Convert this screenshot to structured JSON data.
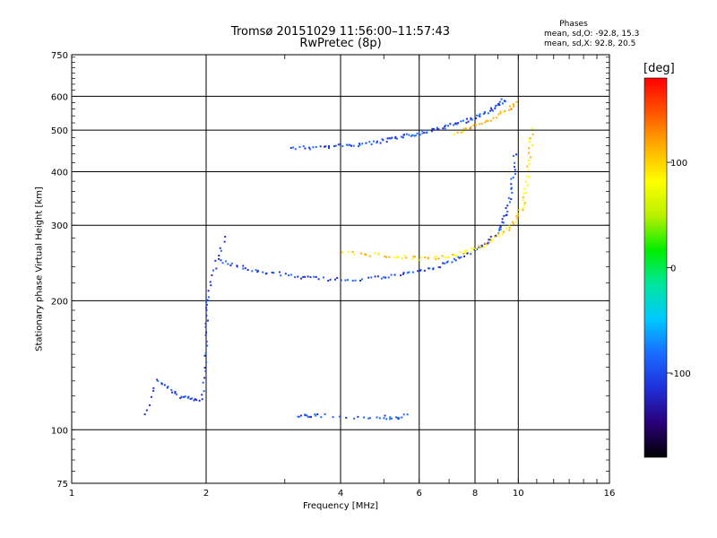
{
  "header": {
    "title_line1": "Tromsø 20151029 11:56:00–11:57:43",
    "title_line2": "RwPretec (8p)"
  },
  "phases_box": {
    "title": "Phases",
    "line1": "mean, sd,O: -92.8, 15.3",
    "line2": "mean, sd,X:  92.8, 20.5"
  },
  "colorbar": {
    "label": "[deg]",
    "range": [
      -180,
      180
    ],
    "tick_values": [
      100,
      0,
      -100
    ],
    "tick_labels": [
      "100",
      "0",
      "-100"
    ],
    "colors": [
      "#000000",
      "#2a007a",
      "#1f2fd8",
      "#1a6bff",
      "#00c8ff",
      "#00e6a0",
      "#00ee00",
      "#b8f000",
      "#ffff00",
      "#ffb000",
      "#ff5500",
      "#ff0000"
    ]
  },
  "chart_data": {
    "type": "scatter",
    "xlabel": "Frequency [MHz]",
    "ylabel": "Stationary phase Virtual Height [km]",
    "x_scale": "log",
    "y_scale": "log",
    "xlim": [
      1,
      16
    ],
    "ylim": [
      75,
      750
    ],
    "x_ticks": [
      1,
      2,
      4,
      6,
      8,
      10,
      16
    ],
    "y_ticks": [
      75,
      100,
      200,
      300,
      400,
      500,
      600,
      750
    ],
    "grid": true,
    "series": [
      {
        "points": [
          [
            3.1,
            455
          ],
          [
            3.4,
            455
          ],
          [
            3.7,
            457
          ],
          [
            4.0,
            460
          ],
          [
            4.3,
            462
          ],
          [
            4.6,
            465
          ],
          [
            4.9,
            470
          ],
          [
            5.2,
            476
          ],
          [
            5.5,
            482
          ],
          [
            5.8,
            488
          ],
          [
            6.1,
            494
          ],
          [
            6.4,
            500
          ],
          [
            6.8,
            507
          ],
          [
            7.2,
            515
          ],
          [
            7.6,
            525
          ],
          [
            8.0,
            535
          ],
          [
            8.4,
            548
          ],
          [
            8.8,
            560
          ],
          [
            9.1,
            575
          ],
          [
            9.3,
            590
          ]
        ]
      },
      {
        "points": [
          [
            7.2,
            490
          ],
          [
            7.8,
            505
          ],
          [
            8.4,
            520
          ],
          [
            9.0,
            540
          ],
          [
            9.5,
            560
          ],
          [
            9.9,
            580
          ]
        ]
      },
      {
        "points": [
          [
            2.15,
            250
          ],
          [
            2.3,
            242
          ],
          [
            2.5,
            236
          ],
          [
            2.7,
            233
          ],
          [
            3.0,
            230
          ],
          [
            3.3,
            227
          ],
          [
            3.6,
            225
          ],
          [
            4.0,
            224
          ],
          [
            4.5,
            225
          ],
          [
            5.0,
            227
          ],
          [
            5.5,
            230
          ],
          [
            6.0,
            234
          ],
          [
            6.5,
            239
          ],
          [
            7.0,
            246
          ],
          [
            7.5,
            254
          ],
          [
            8.0,
            262
          ],
          [
            8.5,
            272
          ],
          [
            8.9,
            285
          ],
          [
            9.2,
            300
          ],
          [
            9.4,
            320
          ],
          [
            9.6,
            350
          ],
          [
            9.75,
            390
          ],
          [
            9.85,
            440
          ]
        ]
      },
      {
        "points": [
          [
            4.0,
            258
          ],
          [
            4.5,
            257
          ],
          [
            5.0,
            255
          ],
          [
            5.5,
            253
          ],
          [
            6.0,
            251
          ],
          [
            6.5,
            252
          ],
          [
            7.0,
            254
          ],
          [
            7.5,
            258
          ],
          [
            8.0,
            264
          ],
          [
            8.5,
            272
          ],
          [
            9.0,
            283
          ],
          [
            9.5,
            295
          ],
          [
            9.9,
            310
          ],
          [
            10.2,
            330
          ],
          [
            10.4,
            360
          ],
          [
            10.55,
            400
          ],
          [
            10.65,
            450
          ],
          [
            10.7,
            500
          ]
        ]
      },
      {
        "points": [
          [
            1.45,
            108
          ],
          [
            1.55,
            130
          ],
          [
            1.65,
            125
          ],
          [
            1.75,
            120
          ],
          [
            1.85,
            118
          ],
          [
            1.95,
            117
          ],
          [
            2.0,
            140
          ],
          [
            2.0,
            165
          ],
          [
            2.0,
            190
          ],
          [
            2.02,
            205
          ],
          [
            2.1,
            240
          ],
          [
            2.2,
            280
          ]
        ]
      },
      {
        "points": [
          [
            3.2,
            108
          ],
          [
            3.4,
            107
          ],
          [
            3.6,
            108
          ],
          [
            4.4,
            107
          ],
          [
            5.0,
            107
          ],
          [
            5.3,
            106
          ],
          [
            5.6,
            108
          ]
        ]
      }
    ]
  }
}
